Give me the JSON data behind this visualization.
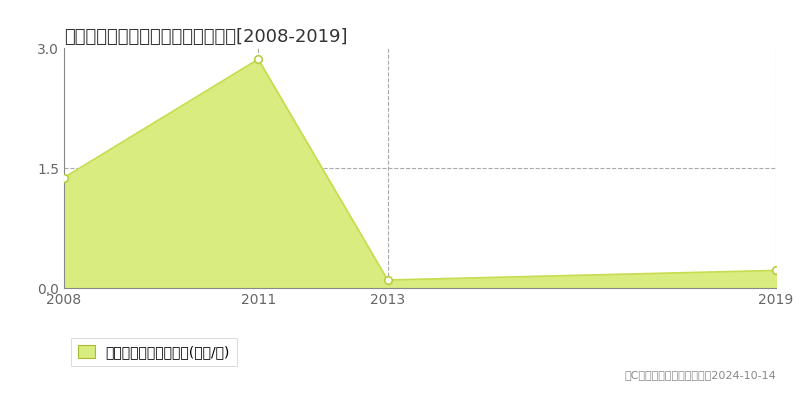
{
  "title": "長岡市小国町相野原　土地価格推移[2008-2019]",
  "years": [
    2008,
    2011,
    2013,
    2019
  ],
  "values": [
    1.38,
    2.86,
    0.1,
    0.22
  ],
  "line_color": "#c8dc50",
  "fill_color": "#d8ec80",
  "marker_color": "#ffffff",
  "marker_edge_color": "#b8cc40",
  "ylim": [
    0,
    3.0
  ],
  "yticks": [
    0,
    1.5,
    3
  ],
  "grid_xticks": [
    2008,
    2011,
    2013,
    2019
  ],
  "xlim_left": 2008,
  "xlim_right": 2019,
  "legend_label": "土地価格　平均坪単価(万円/坪)",
  "copyright_text": "（C）土地価格ドットコム　2024-10-14",
  "background_color": "#ffffff",
  "plot_bg_color": "#ffffff",
  "title_fontsize": 13,
  "tick_fontsize": 10,
  "legend_fontsize": 10,
  "copyright_fontsize": 8
}
